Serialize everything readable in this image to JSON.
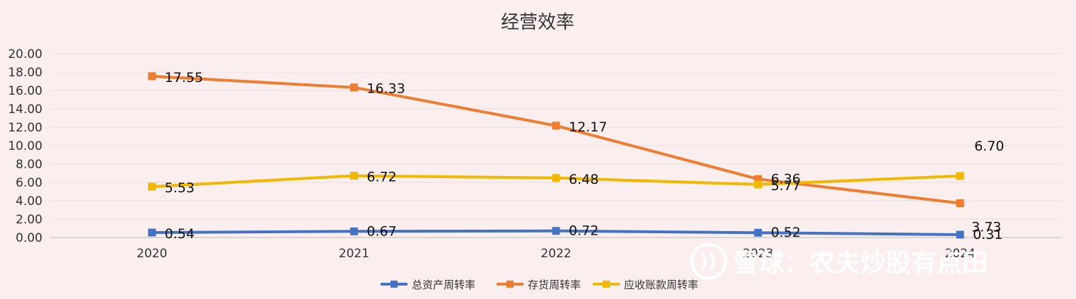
{
  "chart_data": {
    "type": "line",
    "title": "经营效率",
    "categories": [
      "2020",
      "2021",
      "2022",
      "2023",
      "2024"
    ],
    "ylim": [
      0,
      20
    ],
    "yticks": [
      "0.00",
      "2.00",
      "4.00",
      "6.00",
      "8.00",
      "10.00",
      "12.00",
      "14.00",
      "16.00",
      "18.00",
      "20.00"
    ],
    "grid": true,
    "legend_position": "bottom-center",
    "series": [
      {
        "name": "总资产周转率",
        "color": "#4472c4",
        "values": [
          0.54,
          0.67,
          0.72,
          0.52,
          0.31
        ],
        "labels": [
          "0.54",
          "0.67",
          "0.72",
          "0.52",
          "0.31"
        ]
      },
      {
        "name": "存货周转率",
        "color": "#ed7d31",
        "values": [
          17.55,
          16.33,
          12.17,
          6.36,
          3.73
        ],
        "labels": [
          "17.55",
          "16.33",
          "12.17",
          "6.36",
          "3.73"
        ]
      },
      {
        "name": "应收账款周转率",
        "color": "#f0b800",
        "values": [
          5.53,
          6.72,
          6.48,
          5.77,
          6.7
        ],
        "labels": [
          "5.53",
          "6.72",
          "6.48",
          "5.77",
          "6.70"
        ]
      }
    ]
  },
  "watermark": {
    "icon": "snowball-logo-icon",
    "text": "雪球：农夫炒股有点田"
  }
}
